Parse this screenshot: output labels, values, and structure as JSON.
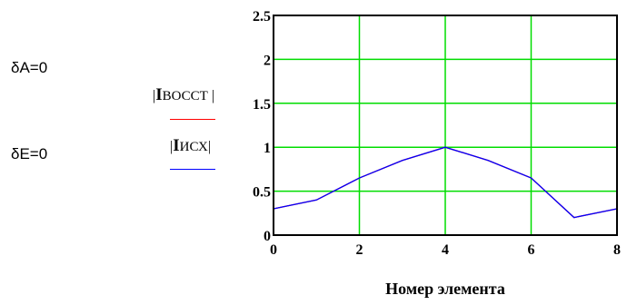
{
  "params": {
    "delta_a": "δA=0",
    "delta_e": "δE=0"
  },
  "legend": {
    "series1": {
      "prefix": "|",
      "big": "I",
      "small": "ВОССТ",
      "suffix": " |"
    },
    "series2": {
      "prefix": "|",
      "big": "I",
      "small": "ИСХ",
      "suffix": "|"
    }
  },
  "colors": {
    "grid": "#00dd00",
    "series_restored": "#ff0000",
    "series_original": "#0000ff",
    "frame": "#000000"
  },
  "chart_data": {
    "type": "line",
    "xlabel": "Номер элемента",
    "ylabel": "",
    "xlim": [
      0,
      8
    ],
    "ylim": [
      0,
      2.5
    ],
    "x_ticks": [
      0,
      2,
      4,
      6,
      8
    ],
    "y_ticks": [
      0,
      0.5,
      1,
      1.5,
      2,
      2.5
    ],
    "x_tick_labels": [
      "0",
      "2",
      "4",
      "6",
      "8"
    ],
    "y_tick_labels": [
      "0",
      "0.5",
      "1",
      "1.5",
      "2",
      "2.5"
    ],
    "grid": true,
    "series": [
      {
        "name": "|IВОССТ|",
        "color": "#ff0000",
        "x": [
          0,
          1,
          2,
          3,
          4,
          5,
          6,
          7,
          8
        ],
        "y": [
          0.3,
          0.4,
          0.65,
          0.85,
          1.0,
          0.85,
          0.65,
          0.2,
          0.3
        ]
      },
      {
        "name": "|IИСХ|",
        "color": "#0000ff",
        "x": [
          0,
          1,
          2,
          3,
          4,
          5,
          6,
          7,
          8
        ],
        "y": [
          0.3,
          0.4,
          0.65,
          0.85,
          1.0,
          0.85,
          0.65,
          0.2,
          0.3
        ]
      }
    ]
  }
}
